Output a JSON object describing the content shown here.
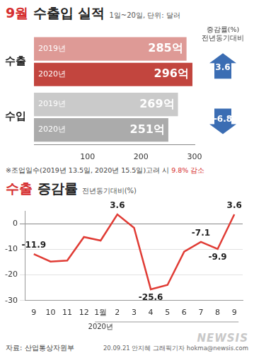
{
  "chart_data": [
    {
      "type": "bar",
      "orientation": "horizontal",
      "title": "9월 수출입 실적",
      "subtitle": "1일~20일, 단위: 달러",
      "categories": [
        "수출",
        "수입"
      ],
      "series": [
        {
          "name": "2019년",
          "colors": [
            "#de9a96",
            "#cacaca"
          ],
          "values": [
            285,
            269
          ],
          "value_labels": [
            "285억",
            "269억"
          ]
        },
        {
          "name": "2020년",
          "colors": [
            "#c2453e",
            "#ababab"
          ],
          "values": [
            296,
            251
          ],
          "value_labels": [
            "296억",
            "251억"
          ]
        }
      ],
      "data_labels": true,
      "xlim": [
        0,
        300
      ],
      "xticks": [
        100,
        200,
        300
      ],
      "grid": false,
      "change": {
        "label": [
          "증감률(%)",
          "전년동기대비"
        ],
        "values": [
          3.6,
          -6.8
        ],
        "color": "#3b6db3"
      },
      "note": {
        "text": "※조업일수(2019년 13.5일, 2020년 15.5일)고려 시 ",
        "highlight": "9.8% 감소"
      }
    },
    {
      "type": "line",
      "title": "수출 증감률",
      "subtitle": "전년동기대비(%)",
      "categories": [
        "9",
        "10",
        "11",
        "12",
        "1월",
        "2",
        "3",
        "4",
        "5",
        "6",
        "7",
        "8",
        "9"
      ],
      "period_label": {
        "text": "2020년",
        "from": "1월"
      },
      "values": [
        -11.9,
        -14.8,
        -14.4,
        -5.2,
        -6.6,
        3.6,
        -1.6,
        -25.6,
        -23.9,
        -10.9,
        -7.1,
        -9.9,
        3.6
      ],
      "value_labels": [
        "-11.9",
        null,
        null,
        null,
        null,
        "3.6",
        null,
        "-25.6",
        null,
        null,
        "-7.1",
        "-9.9",
        "3.6"
      ],
      "data_labels": true,
      "color": "#e03c35",
      "marker": "none",
      "ylim": [
        -30,
        5
      ],
      "yticks": [
        -30,
        -20,
        -10,
        0
      ],
      "grid": true
    }
  ],
  "source": "자료: 산업통상자원부",
  "credit": "20.09.21 안지혜 그래픽기자 hokma@newsis.com",
  "watermark": "NEWSIS"
}
